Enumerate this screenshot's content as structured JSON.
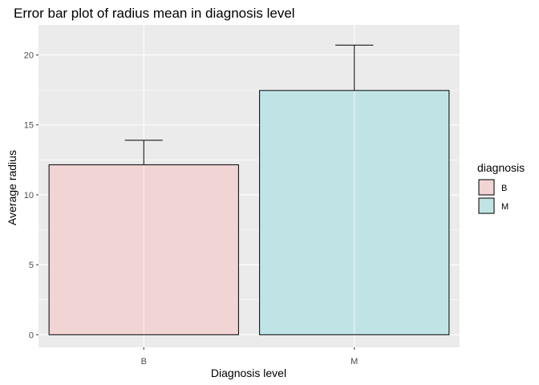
{
  "chart_data": {
    "type": "bar",
    "title": "Error bar plot of radius mean in diagnosis level",
    "xlabel": "Diagnosis level",
    "ylabel": "Average radius",
    "categories": [
      "B",
      "M"
    ],
    "values": [
      12.15,
      17.46
    ],
    "error_upper": [
      13.9,
      20.7
    ],
    "ylim": [
      -0.9,
      22.15
    ],
    "yticks": [
      0,
      5,
      10,
      15,
      20
    ],
    "grid": true,
    "colors": [
      "#f1d4d4",
      "#c0e4e5"
    ],
    "legend": {
      "title": "diagnosis",
      "position": "right",
      "entries": [
        "B",
        "M"
      ]
    }
  }
}
